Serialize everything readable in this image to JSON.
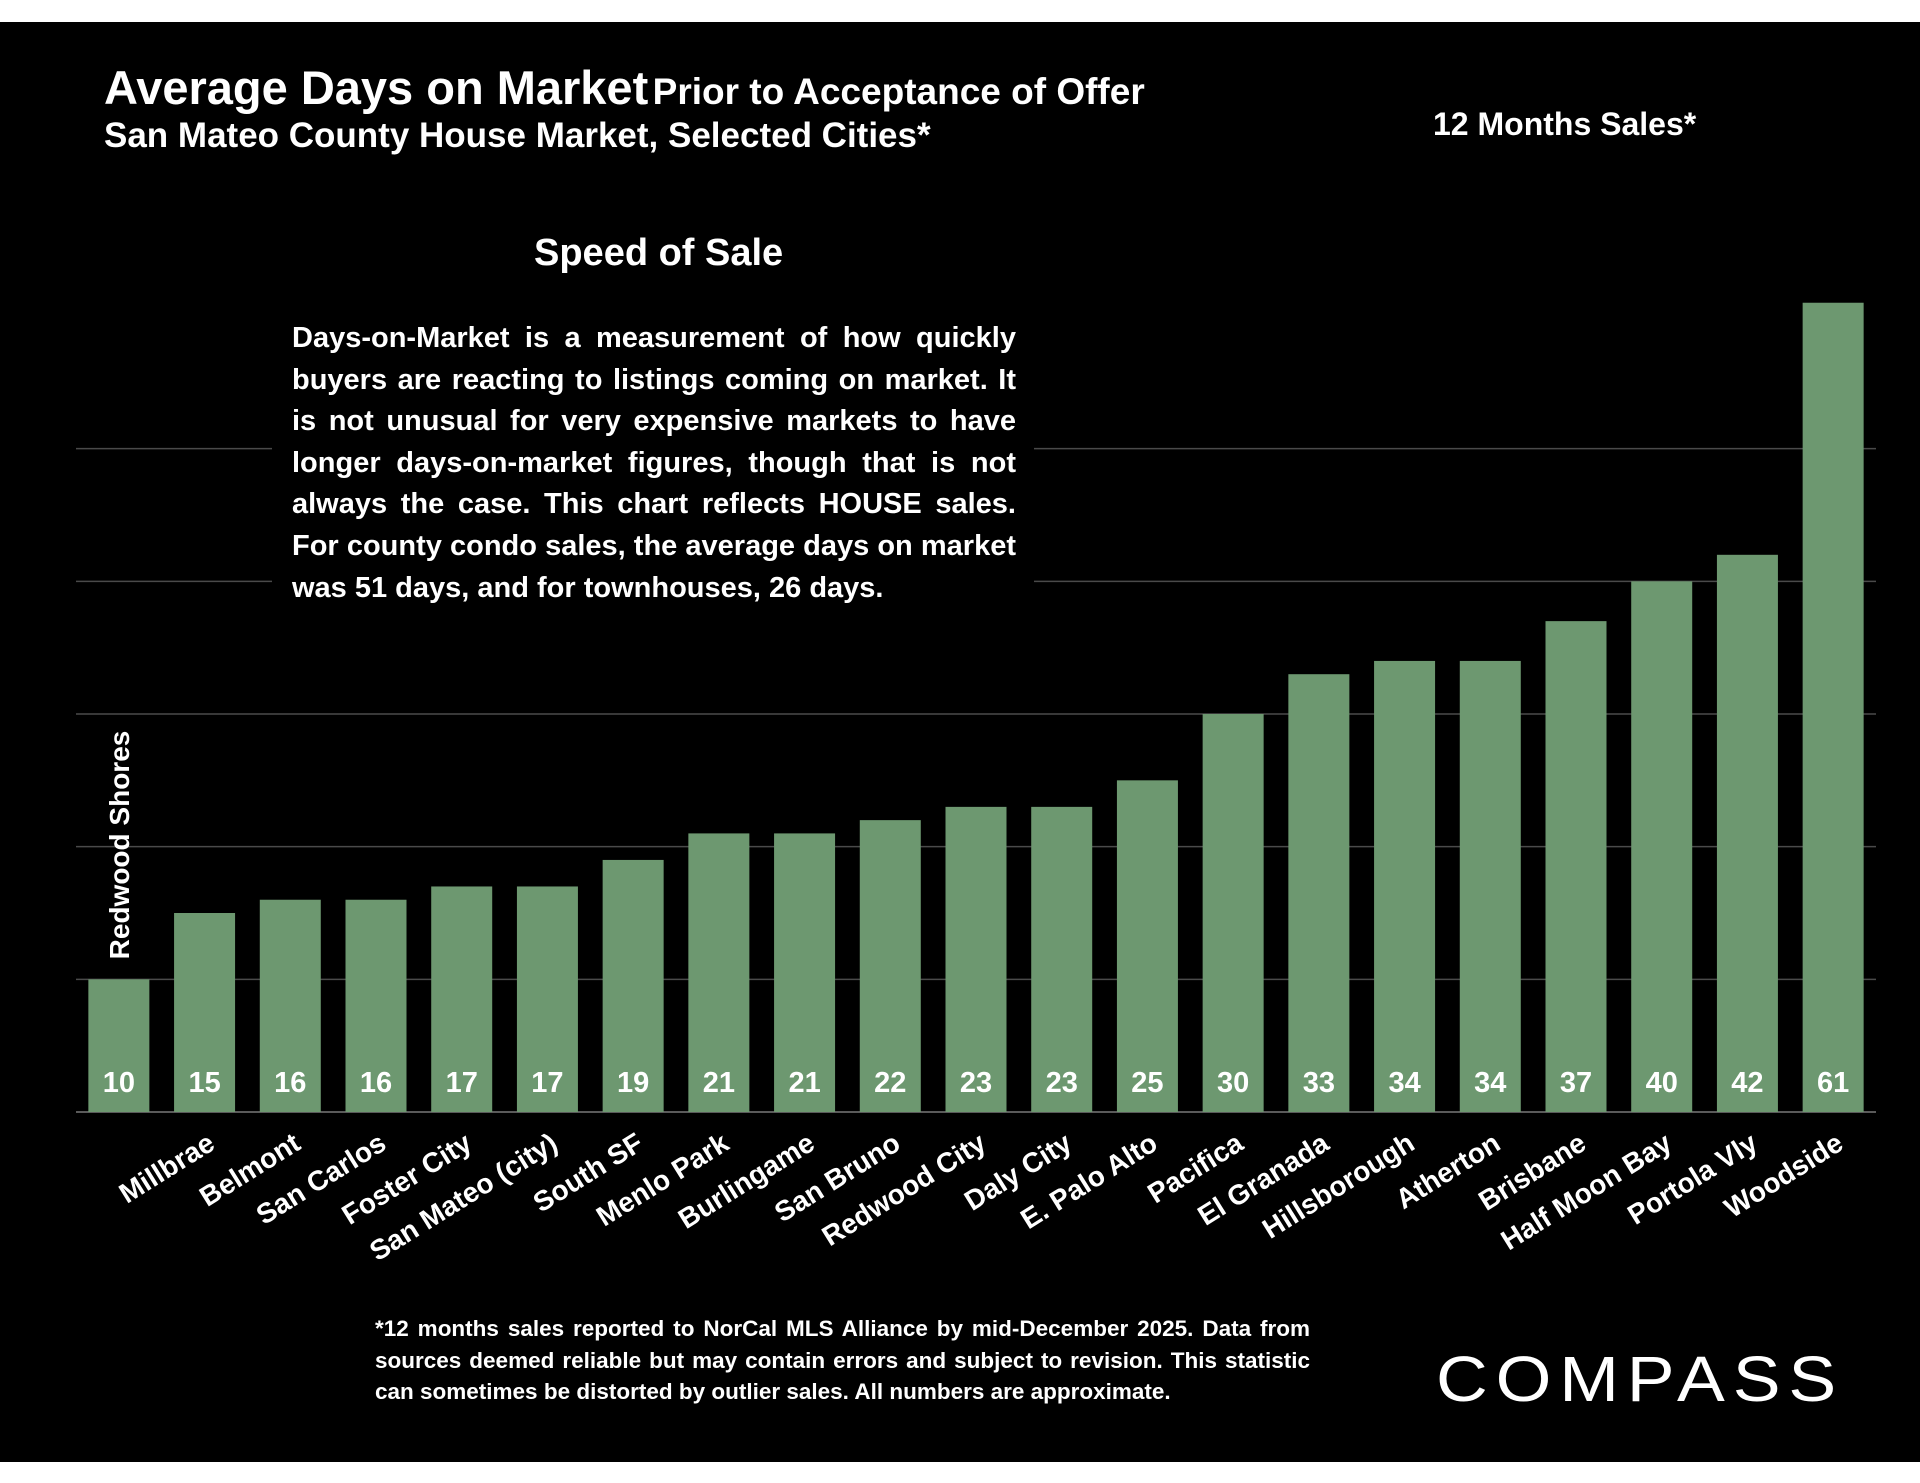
{
  "slide": {
    "title": "Average Days on Market",
    "title_suffix": "Prior to Acceptance of Offer",
    "subtitle": "San Mateo County House Market, Selected Cities*",
    "period_label": "12 Months Sales*",
    "box_title": "Speed of Sale",
    "box_text": "Days-on-Market is a measurement of how quickly buyers are reacting to listings coming on market. It is not unusual for very expensive markets to have longer days-on-market figures, though that is not always the case. This chart reflects HOUSE sales. For county condo sales, the average days on market was 51 days, and for townhouses, 26 days.",
    "footnote": "*12 months sales reported to NorCal MLS Alliance by mid-December 2025. Data from sources deemed reliable but may contain errors and subject to revision. This statistic can sometimes be distorted by outlier sales. All numbers are approximate.",
    "logo_text": "COMPASS"
  },
  "colors": {
    "background": "#000000",
    "bar": "#6d9870",
    "gridline": "#4a4a4a",
    "text": "#ffffff"
  },
  "chart_data": {
    "type": "bar",
    "title": "Average Days on Market",
    "categories": [
      "Redwood Shores",
      "Millbrae",
      "Belmont",
      "San Carlos",
      "Foster City",
      "San Mateo (city)",
      "South SF",
      "Menlo Park",
      "Burlingame",
      "San Bruno",
      "Redwood City",
      "Daly City",
      "E. Palo Alto",
      "Pacifica",
      "El Granada",
      "Hillsborough",
      "Atherton",
      "Brisbane",
      "Half Moon Bay",
      "Portola Vly",
      "Woodside"
    ],
    "values": [
      10,
      15,
      16,
      16,
      17,
      17,
      19,
      21,
      21,
      22,
      23,
      23,
      25,
      30,
      33,
      34,
      34,
      37,
      40,
      42,
      61
    ],
    "ylim": [
      0,
      60
    ],
    "y_gridlines": [
      0,
      10,
      20,
      30,
      40,
      50
    ],
    "grid": true,
    "legend": "none",
    "data_labels": "inside-bottom"
  }
}
